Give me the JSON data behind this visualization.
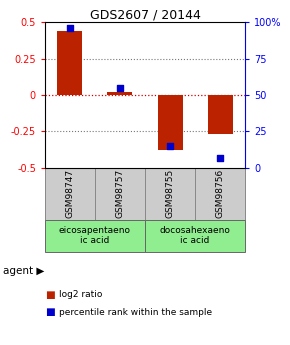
{
  "title": "GDS2607 / 20144",
  "samples": [
    "GSM98747",
    "GSM98757",
    "GSM98755",
    "GSM98756"
  ],
  "log2_ratio": [
    0.44,
    0.02,
    -0.38,
    -0.27
  ],
  "percentile_rank": [
    96,
    55,
    15,
    7
  ],
  "bar_color": "#bb2200",
  "dot_color": "#0000cc",
  "ylim": [
    -0.5,
    0.5
  ],
  "y2lim": [
    0,
    100
  ],
  "yticks": [
    -0.5,
    -0.25,
    0,
    0.25,
    0.5
  ],
  "y2ticks": [
    0,
    25,
    50,
    75,
    100
  ],
  "grid_lines_dotted": [
    -0.25,
    0.25
  ],
  "zero_line_color": "#cc0000",
  "gray_dotted_color": "#777777",
  "agents": [
    {
      "label": "eicosapentaeno\nic acid",
      "cols": [
        0,
        1
      ],
      "color": "#90ee90"
    },
    {
      "label": "docosahexaeno\nic acid",
      "cols": [
        2,
        3
      ],
      "color": "#90ee90"
    }
  ],
  "agent_label": "agent",
  "legend1_label": "log2 ratio",
  "legend2_label": "percentile rank within the sample",
  "sample_box_color": "#cccccc",
  "background_color": "#ffffff",
  "bar_width": 0.5
}
